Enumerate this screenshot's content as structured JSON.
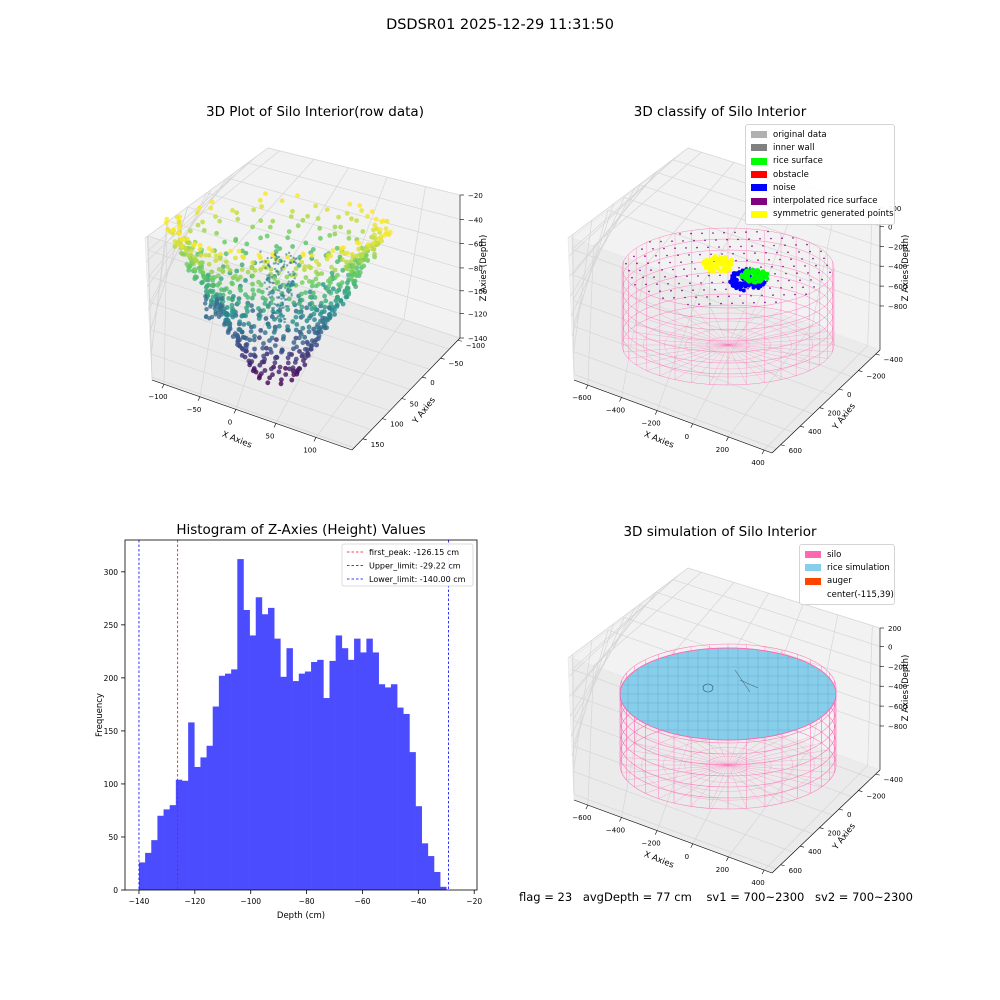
{
  "figure": {
    "suptitle": "DSDSR01 2025-12-29 11:31:50"
  },
  "colors": {
    "viridis": [
      "#440154",
      "#3b528b",
      "#21918c",
      "#5ec962",
      "#fde725"
    ],
    "histogram_bar": "#4c4cff",
    "silo_wire": "#ff69b4",
    "rice_simulation": "#87ceeb",
    "first_peak_line": "#ff0000",
    "limit_lines": "#0000ff"
  },
  "panels": {
    "raw": {
      "title": "3D Plot of Silo Interior(row data)",
      "x_axis_label": "X Axies",
      "y_axis_label": "Y Axies",
      "z_axis_label": "Z Axies (Depth)",
      "x_ticks": [
        "−100",
        "−50",
        "0",
        "50",
        "100"
      ],
      "y_ticks": [
        "−100",
        "−50",
        "0",
        "50",
        "100",
        "150"
      ],
      "z_ticks": [
        "−20",
        "−40",
        "−60",
        "−80",
        "−100",
        "−120",
        "−140"
      ]
    },
    "classify": {
      "title": "3D classify of Silo Interior",
      "x_axis_label": "X Axies",
      "y_axis_label": "Y Axies",
      "z_axis_label": "Z Axies (Depth)",
      "x_ticks": [
        "−600",
        "−400",
        "−200",
        "0",
        "200",
        "400"
      ],
      "y_ticks": [
        "−400",
        "−200",
        "0",
        "200",
        "400",
        "600"
      ],
      "z_ticks": [
        "200",
        "0",
        "−200",
        "−400",
        "−600",
        "−800"
      ],
      "legend": [
        {
          "label": "original data",
          "color": "#b0b0b0"
        },
        {
          "label": "inner wall",
          "color": "#808080"
        },
        {
          "label": "rice surface",
          "color": "#00ff00"
        },
        {
          "label": "obstacle",
          "color": "#ff0000"
        },
        {
          "label": "noise",
          "color": "#0000ff"
        },
        {
          "label": "interpolated rice surface",
          "color": "#800080"
        },
        {
          "label": "symmetric generated points",
          "color": "#ffff00"
        }
      ]
    },
    "simulation": {
      "title": "3D simulation of Silo Interior",
      "x_axis_label": "X Axies",
      "y_axis_label": "Y Axies",
      "z_axis_label": "Z Axies (Depth)",
      "x_ticks": [
        "−600",
        "−400",
        "−200",
        "0",
        "200",
        "400"
      ],
      "y_ticks": [
        "−400",
        "−200",
        "0",
        "200",
        "400",
        "600"
      ],
      "z_ticks": [
        "200",
        "0",
        "−200",
        "−400",
        "−600",
        "−800"
      ],
      "legend": [
        {
          "label": "silo",
          "color": "#ff69b4"
        },
        {
          "label": "rice simulation",
          "color": "#87ceeb"
        },
        {
          "label": "auger",
          "color": "#ff4500"
        },
        {
          "label": "center(-115,39)",
          "color": ""
        }
      ]
    }
  },
  "footer": {
    "flag": "flag = 23",
    "avg_depth": "avgDepth = 77 cm",
    "sv1": "sv1 = 700~2300",
    "sv2": "sv2 = 700~2300"
  },
  "chart_data": [
    {
      "type": "scatter",
      "title": "3D Plot of Silo Interior(row data)",
      "xlabel": "X Axies",
      "ylabel": "Y Axies",
      "zlabel": "Z Axies (Depth)",
      "xlim": [
        -125,
        125
      ],
      "ylim": [
        -110,
        180
      ],
      "zlim": [
        -145,
        -20
      ],
      "description_of_values": "3D scatter of depth points colored by depth (viridis)"
    },
    {
      "type": "scatter",
      "title": "3D classify of Silo Interior",
      "xlabel": "X Axies",
      "ylabel": "Y Axies",
      "zlabel": "Z Axies (Depth)",
      "xlim": [
        -700,
        450
      ],
      "ylim": [
        -450,
        650
      ],
      "zlim": [
        -850,
        250
      ],
      "series": [
        {
          "name": "original data"
        },
        {
          "name": "inner wall"
        },
        {
          "name": "rice surface"
        },
        {
          "name": "obstacle"
        },
        {
          "name": "noise"
        },
        {
          "name": "interpolated rice surface"
        },
        {
          "name": "symmetric generated points"
        }
      ]
    },
    {
      "type": "bar",
      "title": "Histogram of Z-Axies (Height) Values",
      "xlabel": "Depth (cm)",
      "ylabel": "Frequency",
      "xlim": [
        -145,
        -19
      ],
      "ylim": [
        0,
        330
      ],
      "x_ticks": [
        -140,
        -120,
        -100,
        -80,
        -60,
        -40,
        -20
      ],
      "y_ticks": [
        0,
        50,
        100,
        150,
        200,
        250,
        300
      ],
      "bin_start": -140,
      "bin_width": 2.2,
      "values": [
        26,
        35,
        47,
        70,
        76,
        80,
        104,
        103,
        158,
        116,
        125,
        136,
        173,
        202,
        204,
        208,
        312,
        264,
        240,
        276,
        260,
        266,
        237,
        201,
        228,
        197,
        204,
        206,
        215,
        217,
        181,
        216,
        240,
        228,
        217,
        237,
        224,
        237,
        224,
        194,
        191,
        194,
        172,
        166,
        130,
        79,
        44,
        32,
        17,
        3
      ],
      "reference_lines": [
        {
          "name": "first_peak: -126.15 cm",
          "x": -126.15,
          "color": "#ff0000"
        },
        {
          "name": "Upper_limit: -29.22 cm",
          "x": -29.22,
          "color": "#0000ff"
        },
        {
          "name": "Lower_limit: -140.00 cm",
          "x": -140.0,
          "color": "#0000ff"
        }
      ]
    },
    {
      "type": "area",
      "title": "3D simulation of Silo Interior",
      "xlabel": "X Axies",
      "ylabel": "Y Axies",
      "zlabel": "Z Axies (Depth)",
      "xlim": [
        -700,
        450
      ],
      "ylim": [
        -450,
        650
      ],
      "zlim": [
        -850,
        250
      ],
      "series": [
        {
          "name": "silo"
        },
        {
          "name": "rice simulation"
        },
        {
          "name": "auger"
        },
        {
          "name": "center(-115,39)"
        }
      ]
    }
  ]
}
